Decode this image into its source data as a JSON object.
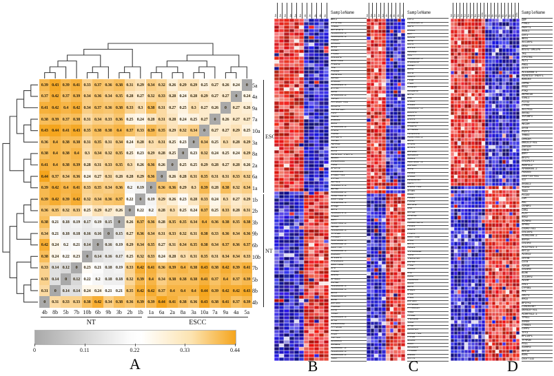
{
  "figure": {
    "captions": {
      "A": "A",
      "B": "B",
      "C": "C",
      "D": "D"
    }
  },
  "colors": {
    "heat_low": "#a9a9a9",
    "heat_mid": "#ffffff",
    "heat_high": "#f5a51d",
    "tumor_high": "#d21f1a",
    "normal_low": "#2722b8",
    "line": "#3a3a3a"
  },
  "chart_data": [
    {
      "panel": "A",
      "type": "heatmap",
      "caption": "A",
      "row_labels": [
        "5a",
        "4a",
        "9a",
        "7a",
        "10a",
        "3a",
        "8a",
        "2a",
        "6a",
        "1a",
        "1b",
        "2b",
        "3b",
        "9b",
        "6b",
        "10b",
        "7b",
        "5b",
        "8b",
        "4b"
      ],
      "col_labels": [
        "4b",
        "8b",
        "5b",
        "7b",
        "10b",
        "6b",
        "9b",
        "3b",
        "2b",
        "1b",
        "1a",
        "6a",
        "2a",
        "8a",
        "3a",
        "10a",
        "7a",
        "9a",
        "4a",
        "5a"
      ],
      "row_groups": [
        {
          "label": "ESCC",
          "from": 0,
          "to": 9
        },
        {
          "label": "NT",
          "from": 10,
          "to": 19
        }
      ],
      "col_groups": [
        {
          "label": "NT",
          "from": 0,
          "to": 9
        },
        {
          "label": "ESCC",
          "from": 10,
          "to": 19
        }
      ],
      "colorbar_ticks": [
        "0",
        "0.11",
        "0.22",
        "0.33",
        "0.44"
      ],
      "value_min": 0,
      "value_mid": 0.22,
      "value_max": 0.44,
      "values": [
        [
          "0.39",
          "0.43",
          "0.39",
          "0.41",
          "0.33",
          "0.37",
          "0.36",
          "0.38",
          "0.31",
          "0.29",
          "0.34",
          "0.32",
          "0.26",
          "0.29",
          "0.29",
          "0.25",
          "0.27",
          "0.26",
          "0.24",
          "0"
        ],
        [
          "0.37",
          "0.42",
          "0.37",
          "0.39",
          "0.34",
          "0.36",
          "0.34",
          "0.35",
          "0.28",
          "0.27",
          "0.32",
          "0.33",
          "0.28",
          "0.24",
          "0.28",
          "0.29",
          "0.27",
          "0.27",
          "0",
          "0.24"
        ],
        [
          "0.41",
          "0.42",
          "0.4",
          "0.42",
          "0.34",
          "0.37",
          "0.36",
          "0.38",
          "0.33",
          "0.3",
          "0.38",
          "0.31",
          "0.27",
          "0.25",
          "0.3",
          "0.27",
          "0.26",
          "0",
          "0.27",
          "0.26"
        ],
        [
          "0.38",
          "0.39",
          "0.37",
          "0.38",
          "0.31",
          "0.34",
          "0.33",
          "0.36",
          "0.25",
          "0.24",
          "0.28",
          "0.31",
          "0.28",
          "0.24",
          "0.25",
          "0.27",
          "0",
          "0.26",
          "0.27",
          "0.27"
        ],
        [
          "0.43",
          "0.44",
          "0.41",
          "0.43",
          "0.35",
          "0.38",
          "0.38",
          "0.4",
          "0.37",
          "0.33",
          "0.39",
          "0.35",
          "0.29",
          "0.32",
          "0.34",
          "0",
          "0.27",
          "0.27",
          "0.29",
          "0.25"
        ],
        [
          "0.36",
          "0.4",
          "0.38",
          "0.38",
          "0.31",
          "0.35",
          "0.31",
          "0.34",
          "0.24",
          "0.28",
          "0.3",
          "0.31",
          "0.25",
          "0.23",
          "0",
          "0.34",
          "0.25",
          "0.3",
          "0.28",
          "0.29"
        ],
        [
          "0.38",
          "0.4",
          "0.38",
          "0.4",
          "0.3",
          "0.34",
          "0.32",
          "0.35",
          "0.25",
          "0.23",
          "0.29",
          "0.28",
          "0.25",
          "0",
          "0.23",
          "0.32",
          "0.24",
          "0.25",
          "0.24",
          "0.29"
        ],
        [
          "0.41",
          "0.4",
          "0.38",
          "0.39",
          "0.28",
          "0.31",
          "0.33",
          "0.35",
          "0.3",
          "0.26",
          "0.36",
          "0.26",
          "0",
          "0.25",
          "0.25",
          "0.29",
          "0.28",
          "0.27",
          "0.28",
          "0.26"
        ],
        [
          "0.44",
          "0.37",
          "0.34",
          "0.36",
          "0.24",
          "0.27",
          "0.31",
          "0.28",
          "0.28",
          "0.29",
          "0.36",
          "0",
          "0.26",
          "0.28",
          "0.31",
          "0.35",
          "0.31",
          "0.31",
          "0.33",
          "0.32"
        ],
        [
          "0.39",
          "0.42",
          "0.4",
          "0.41",
          "0.33",
          "0.35",
          "0.34",
          "0.36",
          "0.2",
          "0.19",
          "0",
          "0.36",
          "0.36",
          "0.29",
          "0.3",
          "0.39",
          "0.28",
          "0.38",
          "0.32",
          "0.34"
        ],
        [
          "0.39",
          "0.42",
          "0.39",
          "0.42",
          "0.32",
          "0.34",
          "0.36",
          "0.37",
          "0.22",
          "0",
          "0.19",
          "0.29",
          "0.26",
          "0.23",
          "0.28",
          "0.33",
          "0.24",
          "0.3",
          "0.27",
          "0.29"
        ],
        [
          "0.36",
          "0.35",
          "0.32",
          "0.33",
          "0.25",
          "0.29",
          "0.27",
          "0.26",
          "0",
          "0.22",
          "0.2",
          "0.28",
          "0.3",
          "0.25",
          "0.24",
          "0.37",
          "0.25",
          "0.33",
          "0.28",
          "0.31"
        ],
        [
          "0.38",
          "0.21",
          "0.18",
          "0.19",
          "0.17",
          "0.19",
          "0.15",
          "0",
          "0.26",
          "0.37",
          "0.36",
          "0.28",
          "0.35",
          "0.35",
          "0.34",
          "0.4",
          "0.36",
          "0.38",
          "0.35",
          "0.38"
        ],
        [
          "0.34",
          "0.21",
          "0.18",
          "0.18",
          "0.16",
          "0.16",
          "0",
          "0.15",
          "0.27",
          "0.36",
          "0.34",
          "0.31",
          "0.33",
          "0.32",
          "0.31",
          "0.38",
          "0.33",
          "0.36",
          "0.34",
          "0.36"
        ],
        [
          "0.42",
          "0.24",
          "0.2",
          "0.21",
          "0.14",
          "0",
          "0.16",
          "0.19",
          "0.29",
          "0.34",
          "0.35",
          "0.27",
          "0.31",
          "0.34",
          "0.35",
          "0.38",
          "0.34",
          "0.37",
          "0.36",
          "0.37"
        ],
        [
          "0.38",
          "0.24",
          "0.22",
          "0.23",
          "0",
          "0.14",
          "0.16",
          "0.17",
          "0.25",
          "0.32",
          "0.33",
          "0.24",
          "0.28",
          "0.3",
          "0.31",
          "0.35",
          "0.31",
          "0.34",
          "0.34",
          "0.33"
        ],
        [
          "0.33",
          "0.14",
          "0.12",
          "0",
          "0.23",
          "0.21",
          "0.18",
          "0.19",
          "0.33",
          "0.42",
          "0.41",
          "0.36",
          "0.39",
          "0.4",
          "0.38",
          "0.43",
          "0.38",
          "0.42",
          "0.39",
          "0.41"
        ],
        [
          "0.33",
          "0.14",
          "0",
          "0.12",
          "0.22",
          "0.2",
          "0.18",
          "0.18",
          "0.32",
          "0.39",
          "0.4",
          "0.34",
          "0.38",
          "0.38",
          "0.38",
          "0.41",
          "0.37",
          "0.4",
          "0.37",
          "0.39"
        ],
        [
          "0.31",
          "0",
          "0.14",
          "0.14",
          "0.24",
          "0.24",
          "0.21",
          "0.21",
          "0.35",
          "0.42",
          "0.42",
          "0.37",
          "0.4",
          "0.4",
          "0.4",
          "0.44",
          "0.39",
          "0.42",
          "0.42",
          "0.43"
        ],
        [
          "0",
          "0.31",
          "0.33",
          "0.33",
          "0.38",
          "0.42",
          "0.34",
          "0.38",
          "0.36",
          "0.39",
          "0.39",
          "0.44",
          "0.41",
          "0.38",
          "0.36",
          "0.43",
          "0.38",
          "0.41",
          "0.37",
          "0.39"
        ]
      ]
    },
    {
      "panel": "B",
      "type": "heatmap",
      "caption": "B",
      "header": "SampleName",
      "col_labels": [
        "1a",
        "2a",
        "3a",
        "4a",
        "5a",
        "6a",
        "1b",
        "2b",
        "3b",
        "4b",
        "5b"
      ],
      "tumor_cols": 6,
      "up_rows": 50,
      "genes": [
        "WNT2",
        "CYP27B1",
        "THBS2",
        "EEF1A1P5",
        "AL359094.1",
        "AC004296.1",
        "FNDC1",
        "LRRC59",
        "NRG1",
        "INHBA",
        "PYCR1",
        "COL11A1",
        "NDUFA4L2",
        "PHLDA2",
        "TK1",
        "POLR3F",
        "MSANTD3",
        "CDH13",
        "CASC15",
        "AL391623.1",
        "DTYMK",
        "CDH3",
        "AP000695.2",
        "TOP2A",
        "MAP3K20-AS1",
        "SLC2A1",
        "TNFRSF12A",
        "POMP",
        "TCEA3",
        "DCBLD2",
        "NOX4",
        "AP000696.2",
        "HMGA2",
        "PLEK2",
        "RAPGEF5",
        "TGFBI",
        "ADAM12",
        "MLF1",
        "CCT2",
        "MSANTD3-TMEFF1",
        "NEDD4",
        "LINC00345",
        "PGK1",
        "LPCAT1",
        "SIGLEC15",
        "ITGB1-AS1",
        "CTPS1",
        "HEPHL1",
        "AC116274.1",
        "BEAN2",
        "AC005388.2",
        "AC027612.2",
        "C9orf152",
        "AC112981.1",
        "CASQ2",
        "NRP1",
        "AL591479.1",
        "TAGLN",
        "NNMT",
        "AC097503.2",
        "ADH1B",
        "AL132656.1",
        "TFAP2B",
        "FAM83A",
        "AC073896.4",
        "AJ009632.2",
        "C2orf40",
        "AC006038.1",
        "CCDC80",
        "RPL14P1",
        "PRICKLE4",
        "C8orf203",
        "CFD",
        "FOLR1",
        "GREM2",
        "SPRED3",
        "RCAN2",
        "AC116266.1",
        "AC009868.1",
        "BEX4",
        "AC124856.2",
        "BLNK",
        "ZNF366",
        "PCDH18",
        "HAAO",
        "TXNIP",
        "AL365226.1",
        "GPX3",
        "LINC00092",
        "PPP1R3B",
        "MYH11",
        "MT1M",
        "TSPYL5",
        "CD300LG",
        "SORBS1",
        "AL590867.2",
        "AL139354.1",
        "AC099336.2",
        "TNXA"
      ]
    },
    {
      "panel": "C",
      "type": "heatmap",
      "caption": "C",
      "header": "SampleName",
      "col_labels": [
        "1a",
        "2a",
        "3a",
        "4a",
        "5a",
        "1b",
        "2b",
        "3b",
        "4b",
        "5b"
      ],
      "tumor_cols": 5,
      "up_rows": 49,
      "genes": [
        "CST1",
        "AL603926.2",
        "GBP6",
        "EXOC5",
        "BLM",
        "CDCA2",
        "NEK2",
        "CST4",
        "DAPL1",
        "ADGRE2",
        "ARC",
        "AL132639.3",
        "RAD54L6P",
        "HOXB7",
        "DDR1",
        "SGTB",
        "ARGFX",
        "PIGW",
        "FA2H",
        "HOXD10",
        "SLC38A5",
        "SPP1",
        "DSE",
        "CASC9",
        "HACD3",
        "AL139217.3",
        "DUXAP8",
        "CDCA5",
        "LAMP5",
        "SLC16A1",
        "MAGEA6",
        "SPANXB1",
        "MIR205HG",
        "AC007906.2",
        "SKA3",
        "ITGA6",
        "SFRP4",
        "ZNF281",
        "SDR16C5",
        "RUSC1",
        "AC073637.1",
        "ZNF530",
        "RRM2",
        "RIOK1",
        "CASC8",
        "LINC02487",
        "ASPA",
        "CADM3-AS1",
        "SPSB4",
        "RGS5",
        "PDCD4",
        "FOXA2",
        "UGT3A1",
        "CKB",
        "KRT13",
        "SYNPO2",
        "VIT",
        "AC008753.1",
        "PLCD1",
        "CRIP3",
        "PTGFR",
        "C6orf132",
        "LMO3",
        "KRT4",
        "MUC21",
        "TMPRSS11B",
        "TGM3",
        "TMEM178A",
        "EXPH5",
        "FMO2",
        "CLIC3",
        "MAL",
        "RORC",
        "PLEKHG6",
        "SCIN",
        "BLMH",
        "RAB25",
        "GALE",
        "FHL1",
        "ZNF185",
        "CYP2C18",
        "PPARGC1A",
        "TOB1",
        "MYO5B",
        "TMEM30B",
        "TOX3",
        "HPGD",
        "S100A14",
        "DDX11-AS1",
        "FAM3B",
        "IL1RN",
        "RORA",
        "SEC14L6",
        "MYO15B",
        "ENDOU",
        "KRT78"
      ]
    },
    {
      "panel": "D",
      "type": "heatmap",
      "caption": "D",
      "header": "SampleName",
      "col_labels": [
        "1a",
        "2a",
        "3a",
        "4a",
        "5a",
        "6a",
        "7a",
        "8a",
        "9a",
        "10a",
        "1b",
        "2b",
        "3b",
        "4b",
        "5b",
        "6b",
        "7b",
        "8b",
        "9b",
        "10b"
      ],
      "tumor_cols": 10,
      "up_rows": 45,
      "genes": [
        "GRP",
        "FANCI",
        "PKMYT1",
        "SGOL1",
        "CST1",
        "NEO1",
        "SLC16A1",
        "CKS2",
        "BOLA2-SMG1P6",
        "TK1",
        "CYP27B1",
        "MLF1",
        "PNO1",
        "CCT4",
        "AL132656.1",
        "MSANTD3-TMEFF1",
        "KDELR3",
        "LRP5L",
        "HAS2",
        "PTK2",
        "DEPDC1B",
        "VSNL1",
        "PITX2",
        "LYPD3",
        "SLC7A11",
        "SNTB1",
        "IGF2BP3",
        "CDC6",
        "MECOM",
        "GATB",
        "PSAT1",
        "THBS1",
        "LRRC8A",
        "UBE2L3-AS1",
        "ZNF530",
        "CSE1L",
        "BMP7",
        "BRIP1",
        "COLGALT1",
        "MORF4L2",
        "AP000695.2",
        "FBXO45",
        "C8orf34-AS1",
        "VIT",
        "SH3GL2",
        "TCEA3",
        "TNXA",
        "PLCD3",
        "LUM",
        "MSC",
        "CRABP2",
        "CNN1",
        "PLAT",
        "NSG2",
        "SCARA5",
        "SPRR3",
        "CADM3-AS1",
        "COL14A1",
        "AC002398.2",
        "NAPSA",
        "COL4A4",
        "AC127521.1",
        "KRT13",
        "ALOX12",
        "CRYAB",
        "CSTB",
        "ADH1B",
        "COL6A5",
        "BLNK",
        "IL13RA2",
        "ADIRF",
        "CHL1",
        "CYP4B1",
        "MAL",
        "CRCT1",
        "RHCG",
        "BPIFA1",
        "LINC02487",
        "UBXN10-AS1",
        "AC007512.1",
        "TPRG1",
        "SAMD5",
        "CYB5D1",
        "CSRP2",
        "TFF3",
        "RPL14P1",
        "TFAP2B",
        "POLL",
        "S100A4",
        "KRT15",
        "RORC",
        "C6orf132"
      ]
    }
  ]
}
